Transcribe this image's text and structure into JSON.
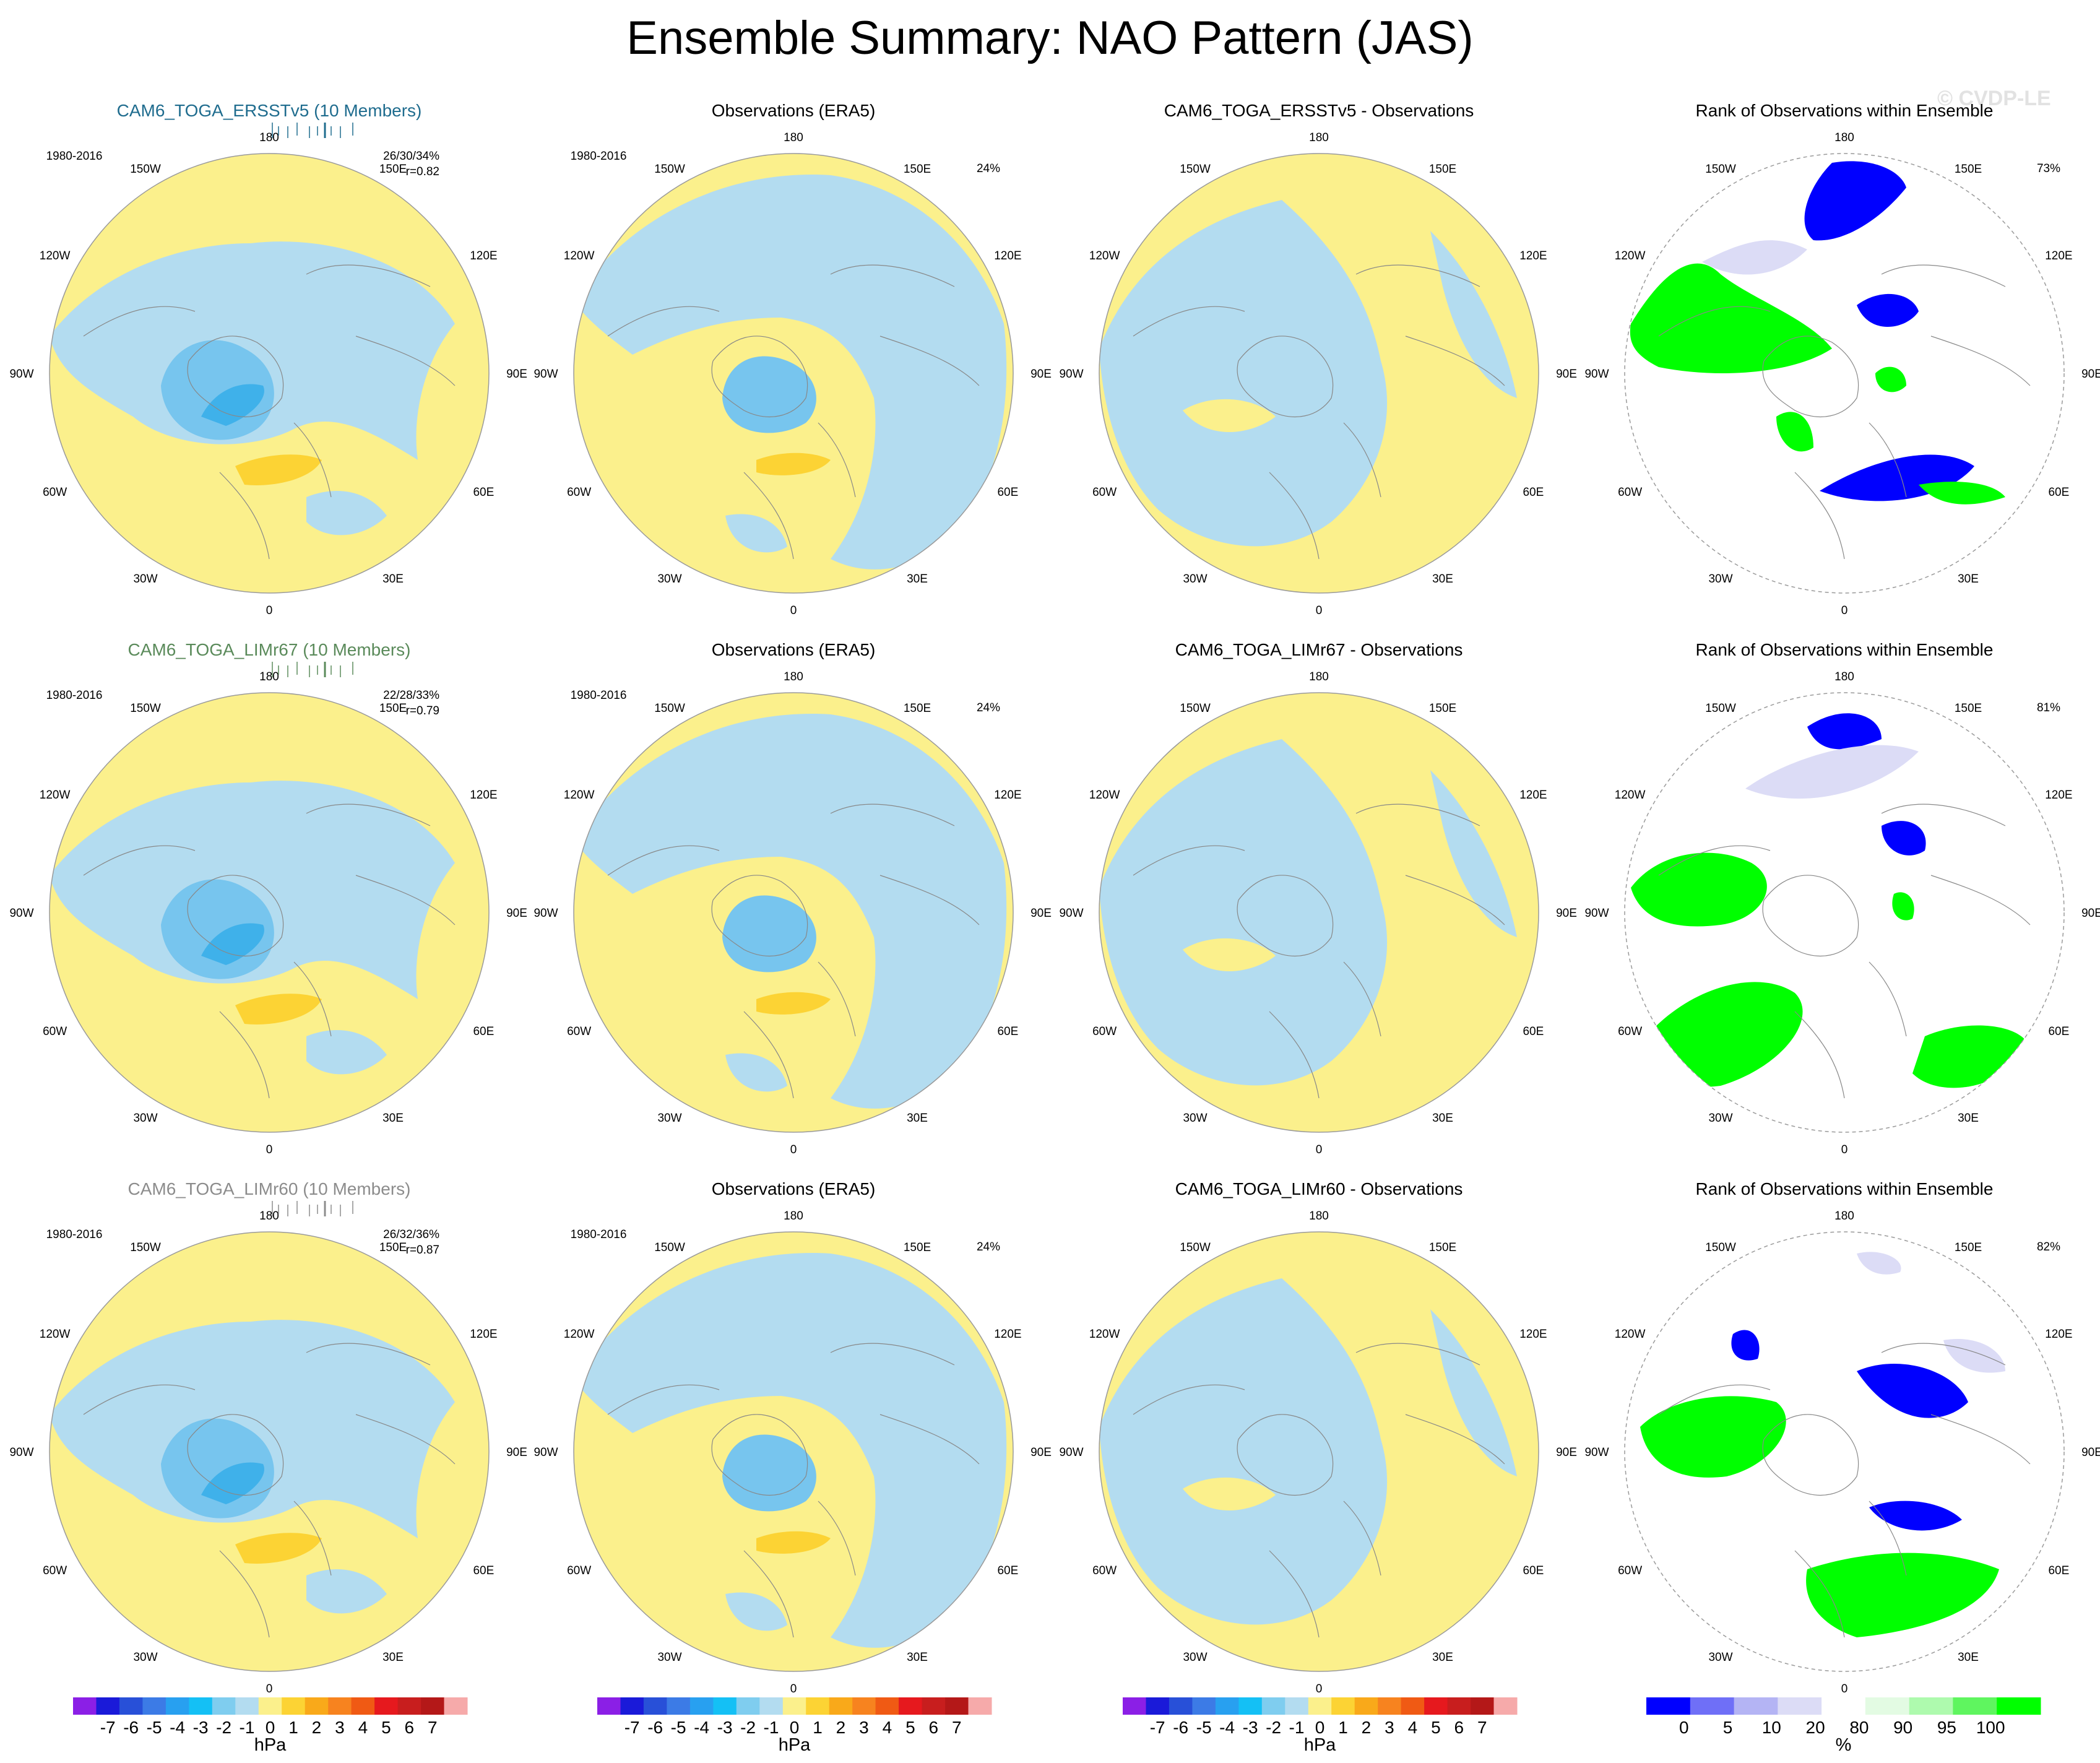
{
  "title": "Ensemble Summary: NAO Pattern (JAS)",
  "watermark": "© CVDP-LE",
  "lon_labels": [
    "180",
    "150E",
    "120E",
    "90E",
    "60E",
    "30E",
    "0",
    "30W",
    "60W",
    "90W",
    "120W",
    "150W"
  ],
  "colors": {
    "neg1": "#b3dcf0",
    "neg2": "#77c5ee",
    "neg3": "#3fb1ea",
    "pos1": "#fbf08c",
    "pos2": "#fcd334",
    "pos3": "#f9a91a",
    "rank_low": "#0000ff",
    "rank_mid": "#dcdcf6",
    "rank_high": "#00ff00"
  },
  "rows": [
    {
      "model_title": "CAM6_TOGA_ERSSTv5 (10 Members)",
      "model_color": "#1f6c8e",
      "period": "1980-2016",
      "stats": "26/30/34%",
      "corr": "r=0.82",
      "obs_title": "Observations (ERA5)",
      "obs_period": "1980-2016",
      "obs_pct": "24%",
      "diff_title": "CAM6_TOGA_ERSSTv5 - Observations",
      "rank_title": "Rank of Observations within Ensemble",
      "rank_pct": "73%"
    },
    {
      "model_title": "CAM6_TOGA_LIMr67 (10 Members)",
      "model_color": "#5a8a5a",
      "period": "1980-2016",
      "stats": "22/28/33%",
      "corr": "r=0.79",
      "obs_title": "Observations (ERA5)",
      "obs_period": "1980-2016",
      "obs_pct": "24%",
      "diff_title": "CAM6_TOGA_LIMr67 - Observations",
      "rank_title": "Rank of Observations within Ensemble",
      "rank_pct": "81%"
    },
    {
      "model_title": "CAM6_TOGA_LIMr60 (10 Members)",
      "model_color": "#8c8c8c",
      "period": "1980-2016",
      "stats": "26/32/36%",
      "corr": "r=0.87",
      "obs_title": "Observations (ERA5)",
      "obs_period": "1980-2016",
      "obs_pct": "24%",
      "diff_title": "CAM6_TOGA_LIMr60 - Observations",
      "rank_title": "Rank of Observations within Ensemble",
      "rank_pct": "82%"
    }
  ],
  "hpa_colorbar": {
    "colors": [
      "#8b1fe6",
      "#1a1ad9",
      "#2850d8",
      "#3c7be6",
      "#28a0f0",
      "#14c0f5",
      "#7fcdef",
      "#b3dcf0",
      "#fbf08c",
      "#fcd334",
      "#f9a91a",
      "#f7831f",
      "#f05a14",
      "#e6191e",
      "#c81e1e",
      "#b41818",
      "#f6aaaa"
    ],
    "labels": [
      "-7",
      "-6",
      "-5",
      "-4",
      "-3",
      "-2",
      "-1",
      "0",
      "1",
      "2",
      "3",
      "4",
      "5",
      "6",
      "7"
    ],
    "unit": "hPa"
  },
  "rank_colorbar": {
    "colors": [
      "#0000ff",
      "#6f6ff7",
      "#b4b4f4",
      "#dcdcf6",
      "#ffffff",
      "#e3fbe3",
      "#aefaae",
      "#5ff55f",
      "#00ff00"
    ],
    "labels": [
      "0",
      "5",
      "10",
      "20",
      "80",
      "90",
      "95",
      "100"
    ],
    "unit": "%"
  }
}
